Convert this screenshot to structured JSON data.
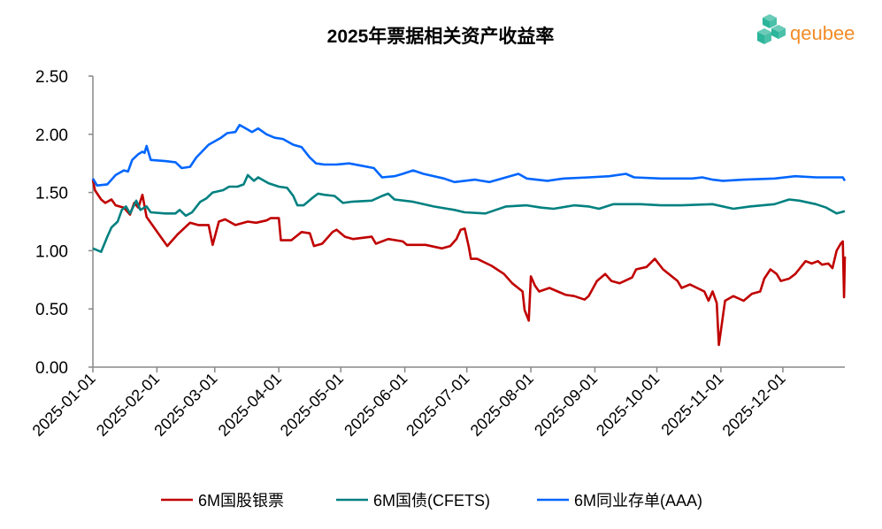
{
  "chart_data": {
    "type": "line",
    "title": "2025年票据相关资产收益率",
    "xlabel": "",
    "ylabel": "",
    "x_unit": "day of year 2025 (0 = 2025-01-01)",
    "xlim": [
      0,
      364
    ],
    "ylim": [
      0,
      2.5
    ],
    "y_ticks": [
      "0.00",
      "0.50",
      "1.00",
      "1.50",
      "2.00",
      "2.50"
    ],
    "y_tick_values": [
      0,
      0.5,
      1.0,
      1.5,
      2.0,
      2.5
    ],
    "x_ticks": [
      "2025-01-01",
      "2025-02-01",
      "2025-03-01",
      "2025-04-01",
      "2025-05-01",
      "2025-06-01",
      "2025-07-01",
      "2025-08-01",
      "2025-09-01",
      "2025-10-01",
      "2025-11-01",
      "2025-12-01"
    ],
    "x_tick_days": [
      0,
      31,
      59,
      90,
      120,
      151,
      181,
      212,
      243,
      273,
      304,
      334
    ],
    "grid": false,
    "legend_position": "bottom",
    "series": [
      {
        "name": "6M国股银票",
        "color": "#C00000",
        "points": [
          [
            0,
            1.61
          ],
          [
            1,
            1.52
          ],
          [
            4,
            1.44
          ],
          [
            6,
            1.41
          ],
          [
            9,
            1.44
          ],
          [
            11,
            1.39
          ],
          [
            15,
            1.37
          ],
          [
            18,
            1.31
          ],
          [
            20,
            1.41
          ],
          [
            22,
            1.37
          ],
          [
            24,
            1.48
          ],
          [
            26,
            1.29
          ],
          [
            32,
            1.14
          ],
          [
            36,
            1.04
          ],
          [
            41,
            1.14
          ],
          [
            47,
            1.24
          ],
          [
            51,
            1.22
          ],
          [
            56,
            1.22
          ],
          [
            58,
            1.05
          ],
          [
            61,
            1.25
          ],
          [
            64,
            1.27
          ],
          [
            69,
            1.22
          ],
          [
            75,
            1.25
          ],
          [
            79,
            1.24
          ],
          [
            84,
            1.26
          ],
          [
            86,
            1.28
          ],
          [
            90,
            1.28
          ],
          [
            91,
            1.09
          ],
          [
            96,
            1.09
          ],
          [
            101,
            1.16
          ],
          [
            105,
            1.15
          ],
          [
            107,
            1.04
          ],
          [
            111,
            1.06
          ],
          [
            116,
            1.16
          ],
          [
            118,
            1.18
          ],
          [
            122,
            1.12
          ],
          [
            126,
            1.1
          ],
          [
            135,
            1.12
          ],
          [
            137,
            1.06
          ],
          [
            143,
            1.1
          ],
          [
            150,
            1.08
          ],
          [
            152,
            1.05
          ],
          [
            161,
            1.05
          ],
          [
            169,
            1.02
          ],
          [
            173,
            1.04
          ],
          [
            176,
            1.1
          ],
          [
            178,
            1.18
          ],
          [
            180,
            1.19
          ],
          [
            182,
            1.03
          ],
          [
            183,
            0.93
          ],
          [
            186,
            0.93
          ],
          [
            193,
            0.87
          ],
          [
            199,
            0.8
          ],
          [
            203,
            0.72
          ],
          [
            208,
            0.65
          ],
          [
            209,
            0.49
          ],
          [
            211,
            0.4
          ],
          [
            212,
            0.78
          ],
          [
            214,
            0.7
          ],
          [
            216,
            0.65
          ],
          [
            221,
            0.68
          ],
          [
            225,
            0.65
          ],
          [
            229,
            0.62
          ],
          [
            233,
            0.61
          ],
          [
            238,
            0.58
          ],
          [
            240,
            0.61
          ],
          [
            244,
            0.74
          ],
          [
            248,
            0.8
          ],
          [
            251,
            0.74
          ],
          [
            255,
            0.72
          ],
          [
            261,
            0.77
          ],
          [
            263,
            0.84
          ],
          [
            268,
            0.86
          ],
          [
            272,
            0.93
          ],
          [
            276,
            0.84
          ],
          [
            283,
            0.74
          ],
          [
            285,
            0.68
          ],
          [
            289,
            0.71
          ],
          [
            296,
            0.65
          ],
          [
            298,
            0.57
          ],
          [
            300,
            0.65
          ],
          [
            302,
            0.55
          ],
          [
            303,
            0.19
          ],
          [
            306,
            0.57
          ],
          [
            310,
            0.61
          ],
          [
            315,
            0.57
          ],
          [
            319,
            0.63
          ],
          [
            323,
            0.65
          ],
          [
            325,
            0.76
          ],
          [
            328,
            0.84
          ],
          [
            331,
            0.8
          ],
          [
            333,
            0.74
          ],
          [
            337,
            0.76
          ],
          [
            340,
            0.8
          ],
          [
            345,
            0.91
          ],
          [
            348,
            0.89
          ],
          [
            351,
            0.91
          ],
          [
            353,
            0.88
          ],
          [
            356,
            0.89
          ],
          [
            358,
            0.85
          ],
          [
            360,
            1.0
          ],
          [
            362,
            1.06
          ],
          [
            363,
            1.08
          ],
          [
            363.6,
            0.6
          ],
          [
            364,
            0.95
          ]
        ]
      },
      {
        "name": "6M国债(CFETS)",
        "color": "#008080",
        "points": [
          [
            0,
            1.02
          ],
          [
            4,
            0.99
          ],
          [
            7,
            1.12
          ],
          [
            9,
            1.2
          ],
          [
            12,
            1.25
          ],
          [
            14,
            1.35
          ],
          [
            16,
            1.38
          ],
          [
            18,
            1.32
          ],
          [
            21,
            1.43
          ],
          [
            23,
            1.35
          ],
          [
            26,
            1.38
          ],
          [
            28,
            1.33
          ],
          [
            35,
            1.32
          ],
          [
            40,
            1.32
          ],
          [
            42,
            1.35
          ],
          [
            45,
            1.3
          ],
          [
            48,
            1.33
          ],
          [
            52,
            1.42
          ],
          [
            55,
            1.45
          ],
          [
            58,
            1.5
          ],
          [
            63,
            1.52
          ],
          [
            66,
            1.55
          ],
          [
            70,
            1.55
          ],
          [
            73,
            1.57
          ],
          [
            75,
            1.65
          ],
          [
            78,
            1.6
          ],
          [
            80,
            1.63
          ],
          [
            85,
            1.58
          ],
          [
            90,
            1.55
          ],
          [
            94,
            1.54
          ],
          [
            97,
            1.47
          ],
          [
            99,
            1.39
          ],
          [
            102,
            1.39
          ],
          [
            106,
            1.45
          ],
          [
            109,
            1.49
          ],
          [
            112,
            1.48
          ],
          [
            117,
            1.47
          ],
          [
            121,
            1.41
          ],
          [
            125,
            1.42
          ],
          [
            135,
            1.43
          ],
          [
            140,
            1.47
          ],
          [
            143,
            1.49
          ],
          [
            146,
            1.44
          ],
          [
            155,
            1.42
          ],
          [
            165,
            1.38
          ],
          [
            175,
            1.35
          ],
          [
            180,
            1.33
          ],
          [
            190,
            1.32
          ],
          [
            195,
            1.35
          ],
          [
            200,
            1.38
          ],
          [
            210,
            1.39
          ],
          [
            217,
            1.37
          ],
          [
            223,
            1.36
          ],
          [
            233,
            1.39
          ],
          [
            240,
            1.38
          ],
          [
            245,
            1.36
          ],
          [
            252,
            1.4
          ],
          [
            265,
            1.4
          ],
          [
            275,
            1.39
          ],
          [
            285,
            1.39
          ],
          [
            300,
            1.4
          ],
          [
            310,
            1.36
          ],
          [
            318,
            1.38
          ],
          [
            330,
            1.4
          ],
          [
            337,
            1.44
          ],
          [
            342,
            1.43
          ],
          [
            350,
            1.4
          ],
          [
            355,
            1.37
          ],
          [
            360,
            1.32
          ],
          [
            364,
            1.34
          ]
        ]
      },
      {
        "name": "6M同业存单(AAA)",
        "color": "#0066FF",
        "points": [
          [
            0,
            1.62
          ],
          [
            2,
            1.56
          ],
          [
            7,
            1.57
          ],
          [
            11,
            1.65
          ],
          [
            15,
            1.69
          ],
          [
            17,
            1.68
          ],
          [
            19,
            1.78
          ],
          [
            22,
            1.83
          ],
          [
            24,
            1.85
          ],
          [
            25,
            1.84
          ],
          [
            26,
            1.9
          ],
          [
            28,
            1.78
          ],
          [
            35,
            1.77
          ],
          [
            40,
            1.76
          ],
          [
            43,
            1.71
          ],
          [
            47,
            1.72
          ],
          [
            50,
            1.8
          ],
          [
            56,
            1.91
          ],
          [
            62,
            1.97
          ],
          [
            65,
            2.01
          ],
          [
            69,
            2.02
          ],
          [
            71,
            2.08
          ],
          [
            75,
            2.04
          ],
          [
            77,
            2.02
          ],
          [
            80,
            2.05
          ],
          [
            84,
            2.0
          ],
          [
            88,
            1.97
          ],
          [
            92,
            1.96
          ],
          [
            97,
            1.91
          ],
          [
            101,
            1.89
          ],
          [
            105,
            1.8
          ],
          [
            108,
            1.75
          ],
          [
            112,
            1.74
          ],
          [
            118,
            1.74
          ],
          [
            124,
            1.75
          ],
          [
            130,
            1.73
          ],
          [
            136,
            1.71
          ],
          [
            140,
            1.63
          ],
          [
            146,
            1.64
          ],
          [
            150,
            1.66
          ],
          [
            155,
            1.69
          ],
          [
            160,
            1.66
          ],
          [
            170,
            1.62
          ],
          [
            175,
            1.59
          ],
          [
            180,
            1.6
          ],
          [
            185,
            1.61
          ],
          [
            192,
            1.59
          ],
          [
            200,
            1.63
          ],
          [
            206,
            1.66
          ],
          [
            210,
            1.62
          ],
          [
            220,
            1.6
          ],
          [
            228,
            1.62
          ],
          [
            240,
            1.63
          ],
          [
            250,
            1.64
          ],
          [
            258,
            1.66
          ],
          [
            262,
            1.63
          ],
          [
            275,
            1.62
          ],
          [
            290,
            1.62
          ],
          [
            295,
            1.63
          ],
          [
            300,
            1.61
          ],
          [
            305,
            1.6
          ],
          [
            315,
            1.61
          ],
          [
            330,
            1.62
          ],
          [
            340,
            1.64
          ],
          [
            350,
            1.63
          ],
          [
            363,
            1.63
          ],
          [
            364,
            1.6
          ]
        ]
      }
    ]
  },
  "logo": {
    "text": "qeubee",
    "color": "#F28C28",
    "mark_color": "#2BB59A"
  }
}
